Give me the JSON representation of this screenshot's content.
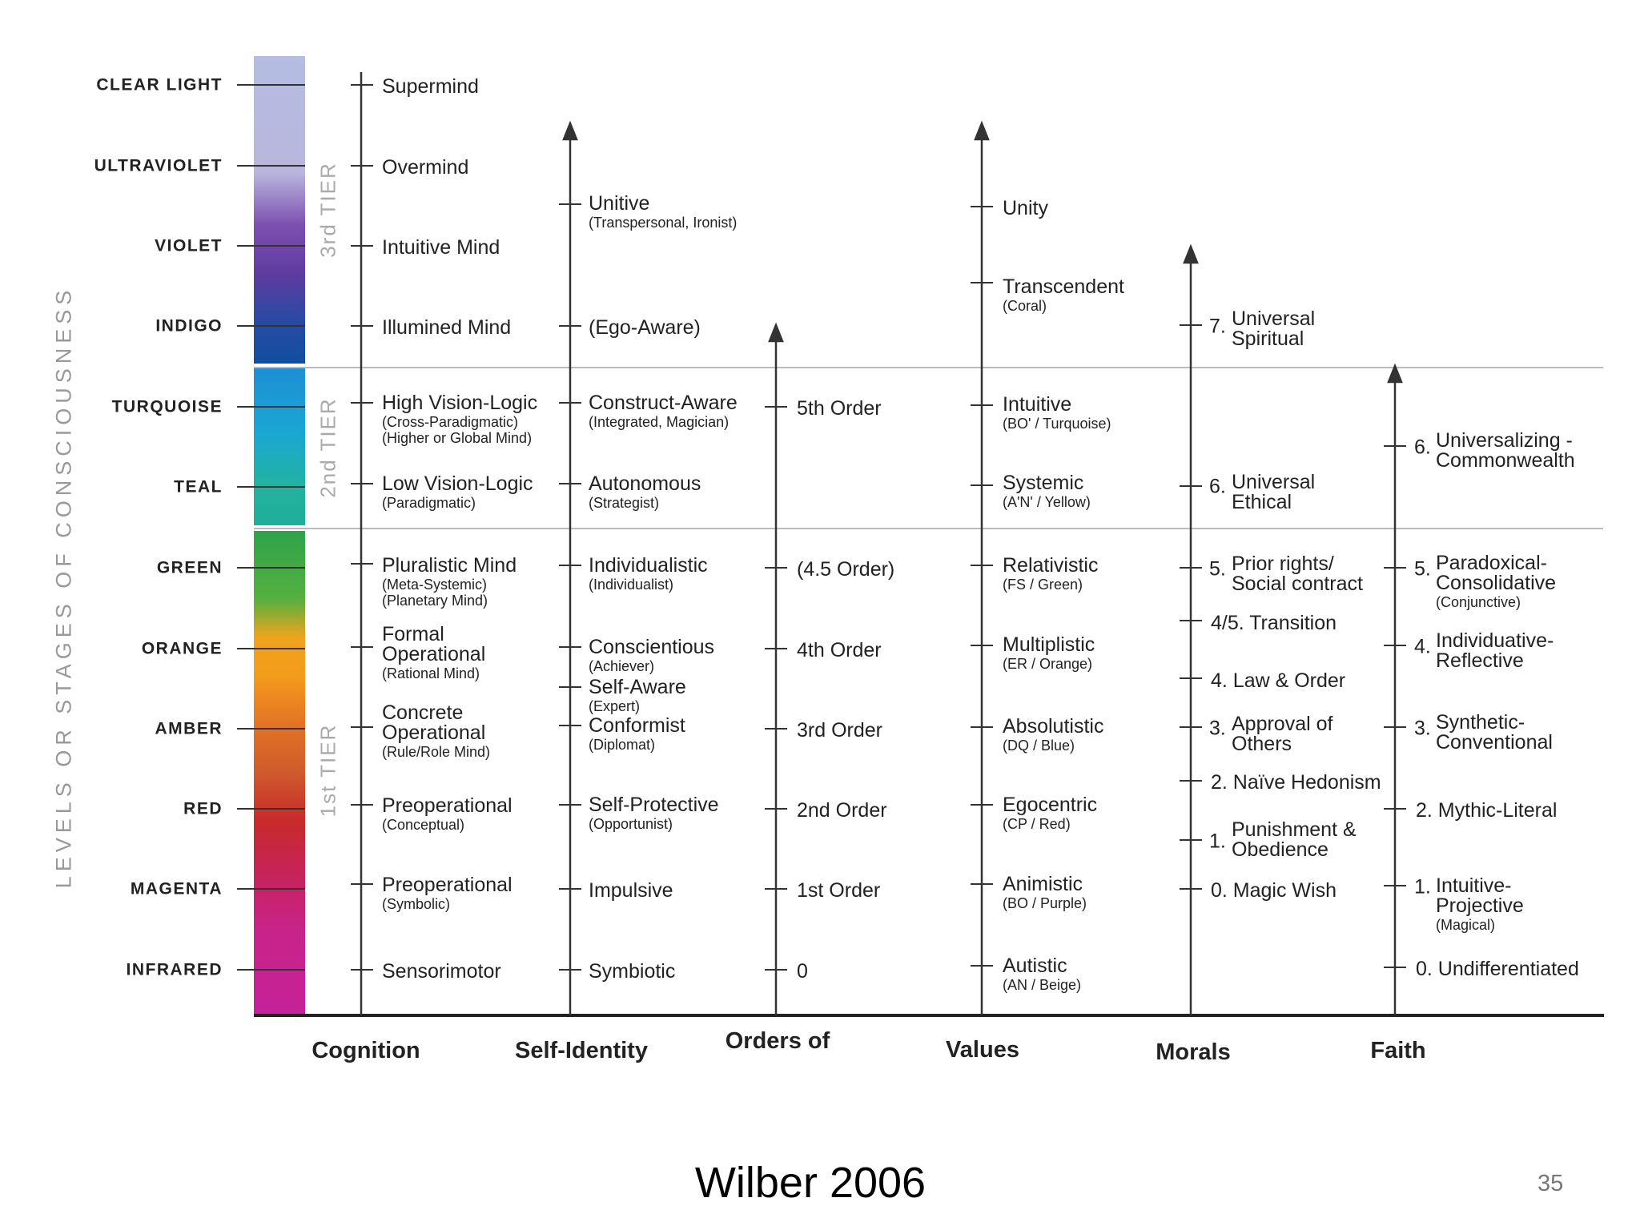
{
  "vertical_label": "LEVELS OR STAGES OF CONSCIOUSNESS",
  "levels": [
    {
      "name": "CLEAR LIGHT"
    },
    {
      "name": "ULTRAVIOLET"
    },
    {
      "name": "VIOLET"
    },
    {
      "name": "INDIGO"
    },
    {
      "name": "TURQUOISE"
    },
    {
      "name": "TEAL"
    },
    {
      "name": "GREEN"
    },
    {
      "name": "ORANGE"
    },
    {
      "name": "AMBER"
    },
    {
      "name": "RED"
    },
    {
      "name": "MAGENTA"
    },
    {
      "name": "INFRARED"
    }
  ],
  "tiers": [
    "3rd TIER",
    "2nd TIER",
    "1st TIER"
  ],
  "columns": {
    "cognition": {
      "title": "Cognition",
      "items": [
        {
          "main": "Supermind"
        },
        {
          "main": "Overmind"
        },
        {
          "main": "Intuitive Mind"
        },
        {
          "main": "Illumined Mind"
        },
        {
          "main": "High Vision-Logic",
          "sub": "(Cross-Paradigmatic)",
          "sub2": "(Higher or Global Mind)"
        },
        {
          "main": "Low Vision-Logic",
          "sub": "(Paradigmatic)"
        },
        {
          "main": "Pluralistic Mind",
          "sub": "(Meta-Systemic)",
          "sub2": "(Planetary Mind)"
        },
        {
          "main": "Formal",
          "main2": "Operational",
          "sub": "(Rational Mind)"
        },
        {
          "main": "Concrete",
          "main2": "Operational",
          "sub": "(Rule/Role Mind)"
        },
        {
          "main": "Preoperational",
          "sub": "(Conceptual)"
        },
        {
          "main": "Preoperational",
          "sub": "(Symbolic)"
        },
        {
          "main": "Sensorimotor"
        }
      ]
    },
    "self_identity": {
      "title": "Self-Identity",
      "items": [
        {
          "main": "Unitive",
          "sub": "(Transpersonal, Ironist)"
        },
        {
          "main": "(Ego-Aware)"
        },
        {
          "main": "Construct-Aware",
          "sub": "(Integrated, Magician)"
        },
        {
          "main": "Autonomous",
          "sub": "(Strategist)"
        },
        {
          "main": "Individualistic",
          "sub": "(Individualist)"
        },
        {
          "main": "Conscientious",
          "sub": "(Achiever)"
        },
        {
          "main": "Self-Aware",
          "sub": "(Expert)"
        },
        {
          "main": "Conformist",
          "sub": "(Diplomat)"
        },
        {
          "main": "Self-Protective",
          "sub": "(Opportunist)"
        },
        {
          "main": "Impulsive"
        },
        {
          "main": "Symbiotic"
        }
      ]
    },
    "orders": {
      "title": "Orders of",
      "items": [
        {
          "main": "5th Order"
        },
        {
          "main": "(4.5 Order)"
        },
        {
          "main": "4th Order"
        },
        {
          "main": "3rd Order"
        },
        {
          "main": "2nd Order"
        },
        {
          "main": "1st Order"
        },
        {
          "main": "0"
        }
      ]
    },
    "values": {
      "title": "Values",
      "items": [
        {
          "main": "Unity"
        },
        {
          "main": "Transcendent",
          "sub": "(Coral)"
        },
        {
          "main": "Intuitive",
          "sub": "(BO' / Turquoise)"
        },
        {
          "main": "Systemic",
          "sub": "(A'N' / Yellow)"
        },
        {
          "main": "Relativistic",
          "sub": "(FS / Green)"
        },
        {
          "main": "Multiplistic",
          "sub": "(ER / Orange)"
        },
        {
          "main": "Absolutistic",
          "sub": "(DQ / Blue)"
        },
        {
          "main": "Egocentric",
          "sub": "(CP / Red)"
        },
        {
          "main": "Animistic",
          "sub": "(BO / Purple)"
        },
        {
          "main": "Autistic",
          "sub": "(AN / Beige)"
        }
      ]
    },
    "morals": {
      "title": "Morals",
      "items": [
        {
          "num": "7.",
          "main": "Universal",
          "main2": "Spiritual"
        },
        {
          "num": "6.",
          "main": "Universal",
          "main2": "Ethical"
        },
        {
          "num": "5.",
          "main": "Prior rights/",
          "main2": "Social contract"
        },
        {
          "num": "",
          "main": "4/5. Transition"
        },
        {
          "num": "",
          "main": "4.  Law & Order"
        },
        {
          "num": "3.",
          "main": "Approval of",
          "main2": "Others"
        },
        {
          "num": "",
          "main": "2. Naïve Hedonism"
        },
        {
          "num": "1.",
          "main": "Punishment &",
          "main2": "Obedience"
        },
        {
          "num": "",
          "main": "0.  Magic Wish"
        }
      ]
    },
    "faith": {
      "title": "Faith",
      "items": [
        {
          "num": "6.",
          "main": "Universalizing -",
          "main2": "Commonwealth"
        },
        {
          "num": "5.",
          "main": "Paradoxical-",
          "main2": "Consolidative",
          "sub": "(Conjunctive)"
        },
        {
          "num": "4.",
          "main": "Individuative-",
          "main2": "Reflective"
        },
        {
          "num": "3.",
          "main": "Synthetic-",
          "main2": "Conventional"
        },
        {
          "num": "",
          "main": "2.  Mythic-Literal"
        },
        {
          "num": "1.",
          "main": "Intuitive-",
          "main2": "Projective",
          "sub": "(Magical)"
        },
        {
          "num": "",
          "main": "0.  Undifferentiated"
        }
      ]
    }
  },
  "caption": "Wilber 2006",
  "page_number": "35"
}
